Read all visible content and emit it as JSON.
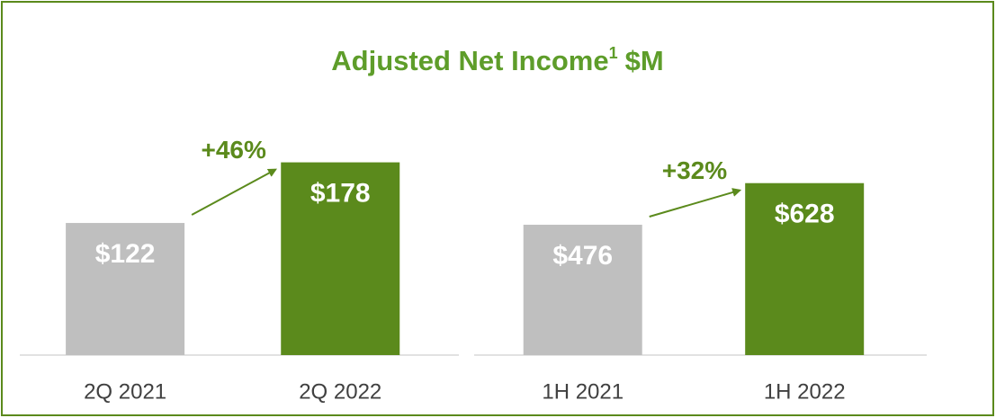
{
  "title": "Adjusted Net Income",
  "title_footnote": "1",
  "title_unit": "$M",
  "chart_data": [
    {
      "type": "bar",
      "categories": [
        "2Q 2021",
        "2Q 2022"
      ],
      "values": [
        122,
        178
      ],
      "value_labels": [
        "$122",
        "$178"
      ],
      "colors": [
        "#bfbfbf",
        "#5b8a1c"
      ],
      "ylim": [
        0,
        220
      ],
      "annotation": "+46%"
    },
    {
      "type": "bar",
      "categories": [
        "1H 2021",
        "1H 2022"
      ],
      "values": [
        476,
        628
      ],
      "value_labels": [
        "$476",
        "$628"
      ],
      "colors": [
        "#bfbfbf",
        "#5b8a1c"
      ],
      "ylim": [
        0,
        870
      ],
      "annotation": "+32%"
    }
  ]
}
